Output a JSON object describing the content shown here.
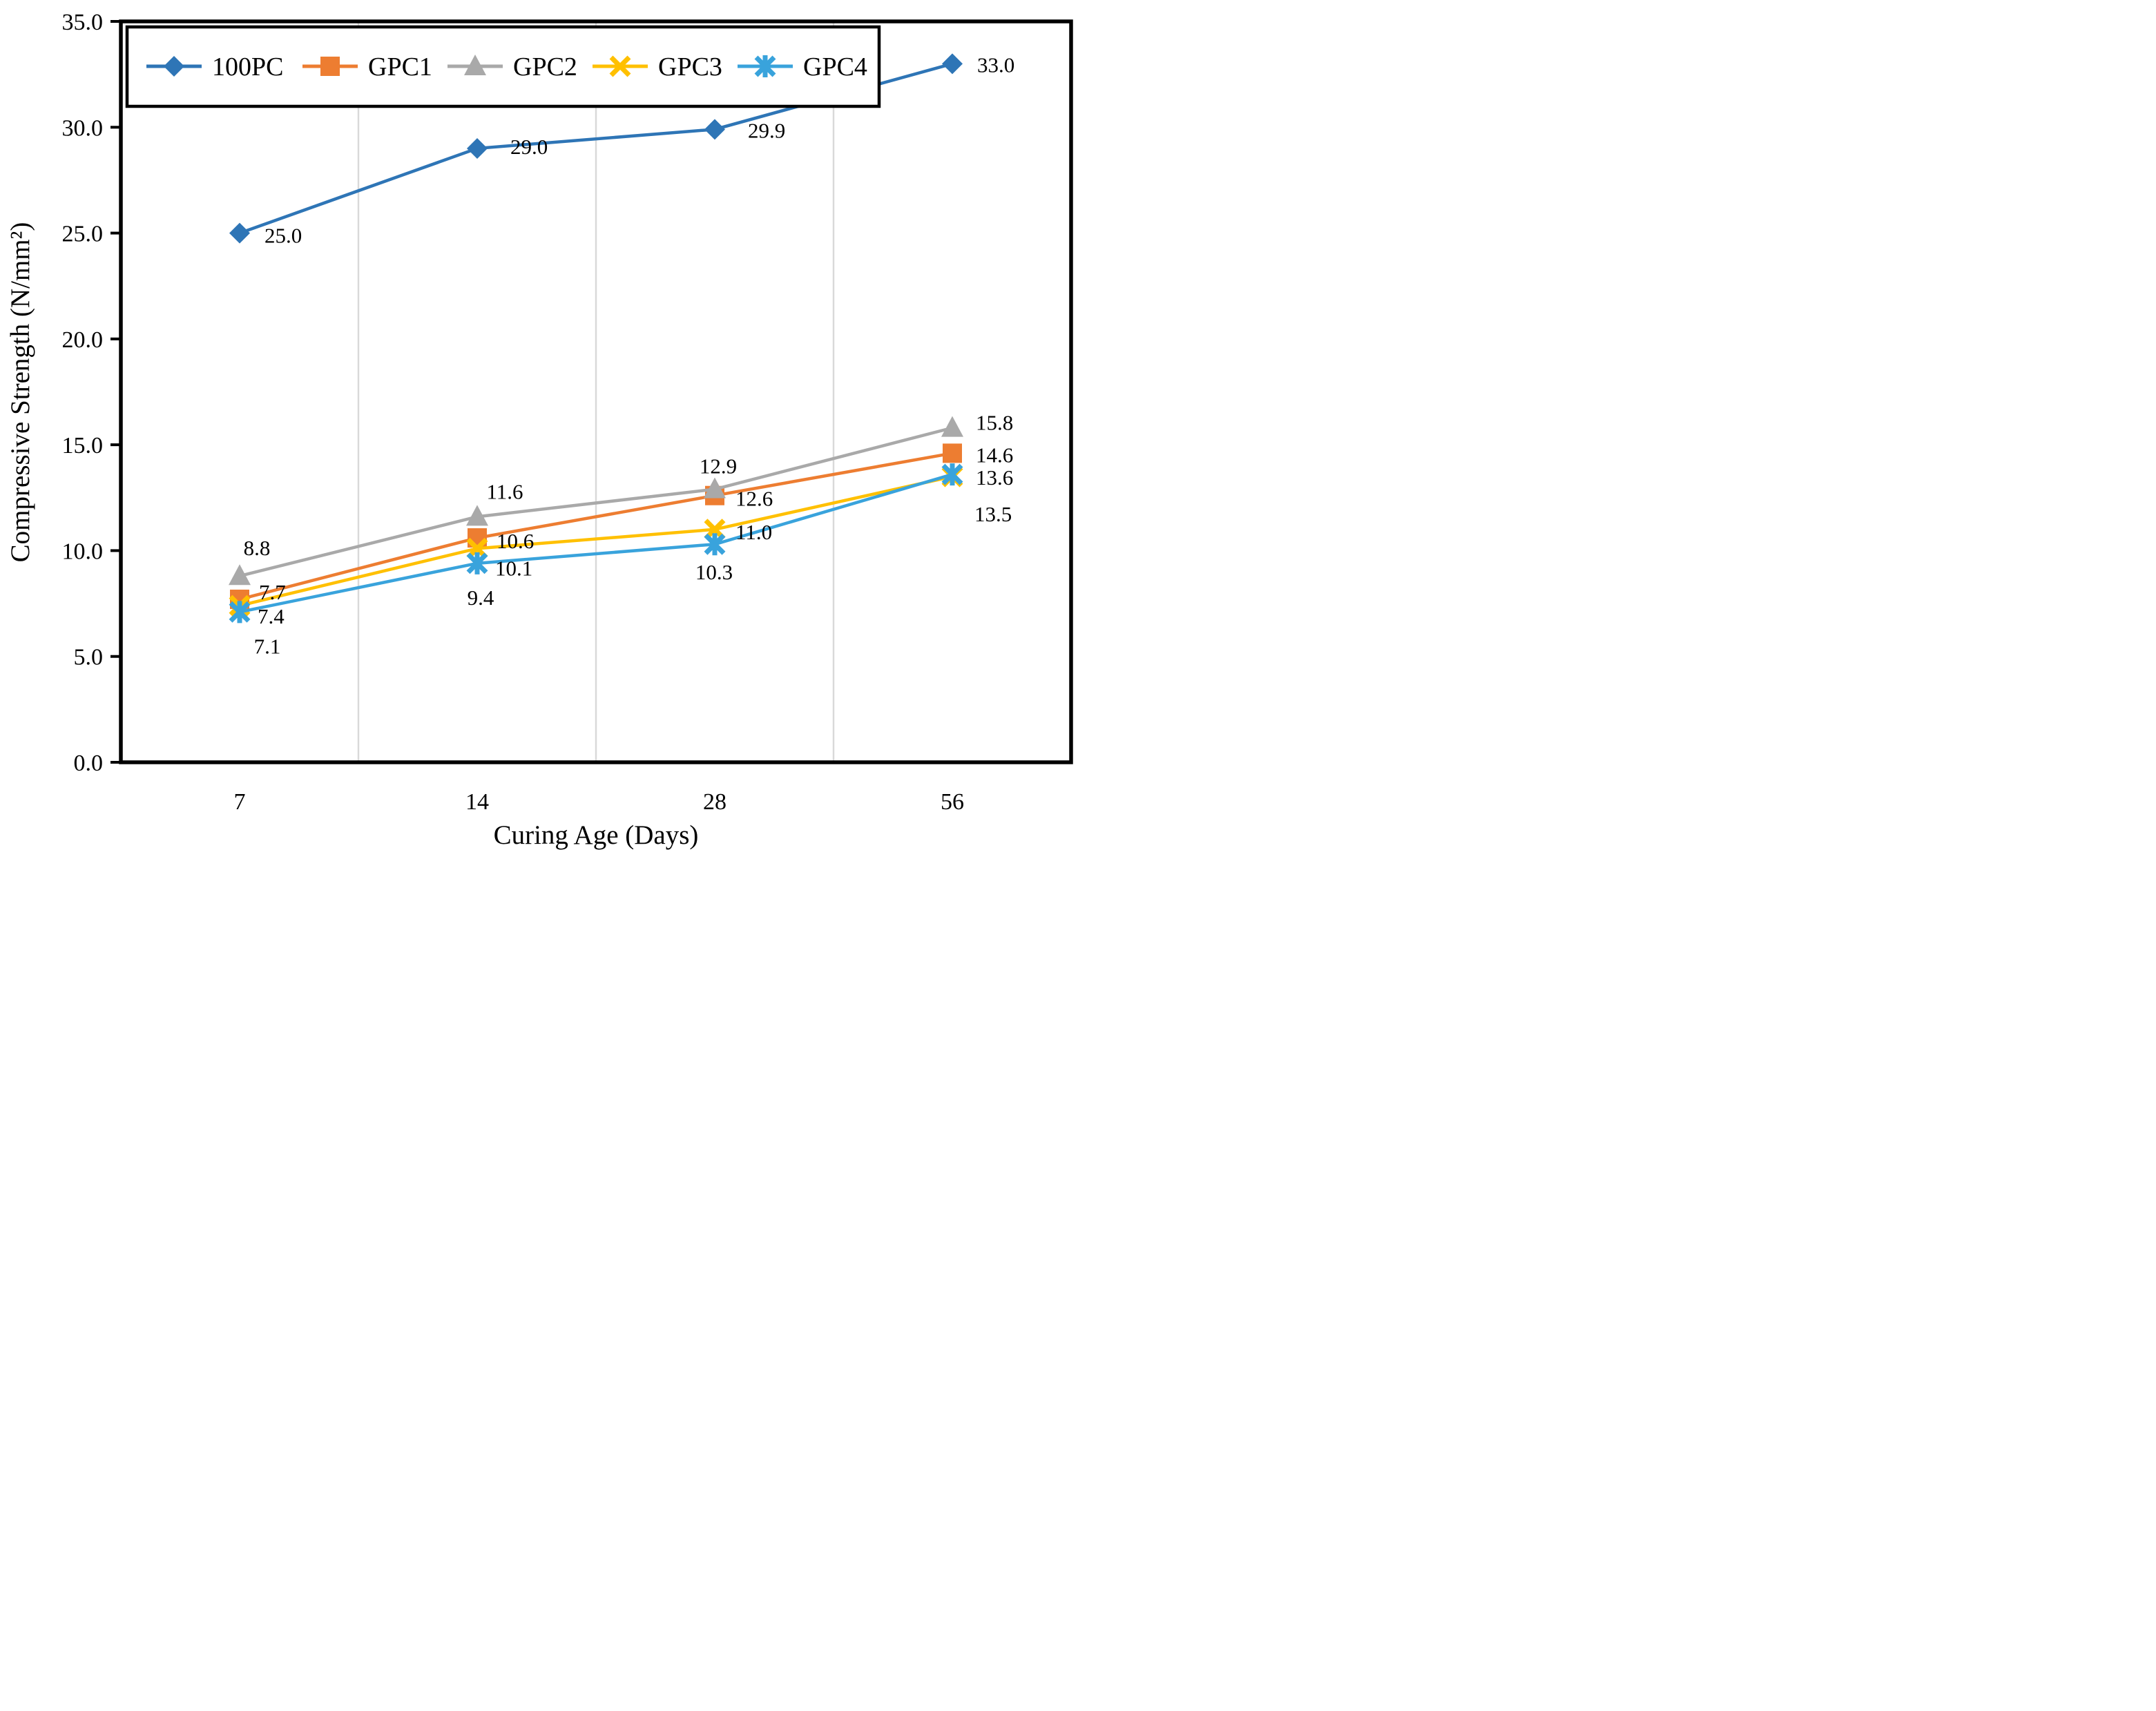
{
  "figure": {
    "background": "#FFFFFF",
    "plot_border_color": "#000000",
    "gridline_color": "#D9D9D9"
  },
  "chart_data": {
    "type": "line",
    "title": "",
    "xlabel": "Curing Age (Days)",
    "ylabel": "Compressive Strength  (N/mm²)",
    "categories": [
      "7",
      "14",
      "28",
      "56"
    ],
    "x_values": [
      7,
      14,
      28,
      56
    ],
    "ylim": [
      0,
      35
    ],
    "y_tick_step": 5,
    "y_tick_labels": [
      "0.0",
      "5.0",
      "10.0",
      "15.0",
      "20.0",
      "25.0",
      "30.0",
      "35.0"
    ],
    "grid": "vertical-category-boundaries",
    "legend_position": "top-inside",
    "series": [
      {
        "name": "100PC",
        "color": "#2E75B6",
        "marker": "diamond",
        "values": [
          25.0,
          29.0,
          29.9,
          33.0
        ],
        "point_labels": [
          "25.0",
          "29.0",
          "29.9",
          "33.0"
        ]
      },
      {
        "name": "GPC1",
        "color": "#ED7D31",
        "marker": "square",
        "values": [
          7.7,
          10.6,
          12.6,
          14.6
        ],
        "point_labels": [
          "7.7",
          "10.6",
          "12.6",
          "14.6"
        ]
      },
      {
        "name": "GPC2",
        "color": "#A9A9A9",
        "marker": "triangle",
        "values": [
          8.8,
          11.6,
          12.9,
          15.8
        ],
        "point_labels": [
          "8.8",
          "11.6",
          "12.9",
          "15.8"
        ]
      },
      {
        "name": "GPC3",
        "color": "#FFC000",
        "marker": "x",
        "values": [
          7.4,
          10.1,
          11.0,
          13.5
        ],
        "point_labels": [
          "7.4",
          "10.1",
          "11.0",
          "13.5"
        ]
      },
      {
        "name": "GPC4",
        "color": "#39A3DC",
        "marker": "asterisk",
        "values": [
          7.1,
          9.4,
          10.3,
          13.6
        ],
        "point_labels": [
          "7.1",
          "9.4",
          "10.3",
          "13.6"
        ]
      }
    ]
  }
}
